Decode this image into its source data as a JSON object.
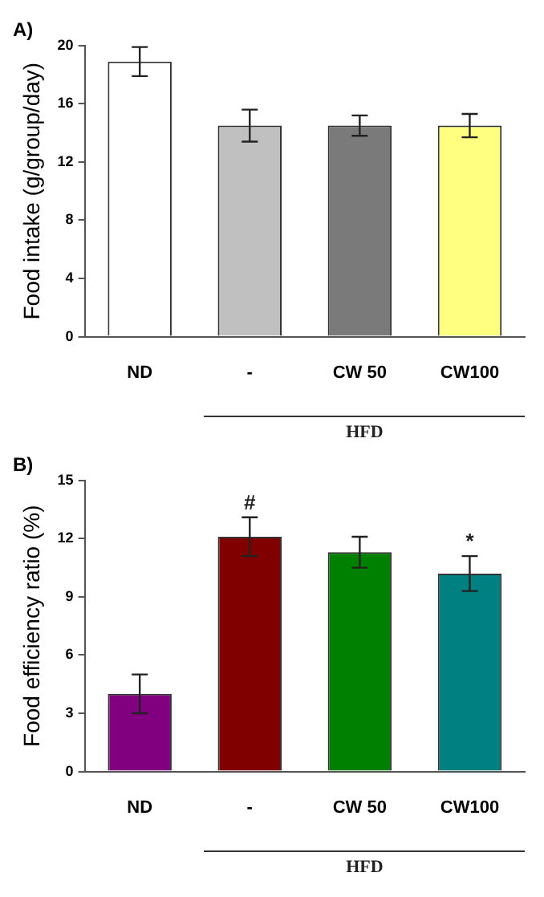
{
  "chart_data": [
    {
      "type": "bar",
      "title": "A)",
      "ylabel": "Food intake (g/group/day)",
      "xlabel": "HFD",
      "categories": [
        "ND",
        "-",
        "CW 50",
        "CW100"
      ],
      "values": [
        18.9,
        14.5,
        14.5,
        14.5
      ],
      "errors": [
        1.0,
        1.1,
        0.7,
        0.8
      ],
      "colors": [
        "#ffffff",
        "#c0c0c0",
        "#7a7a7a",
        "#ffff80"
      ],
      "ylim": [
        0,
        20
      ],
      "yticks": [
        0,
        4,
        8,
        12,
        16,
        20
      ],
      "grid": false,
      "legend": false
    },
    {
      "type": "bar",
      "title": "B)",
      "ylabel": "Food efficiency ratio (%)",
      "xlabel": "HFD",
      "categories": [
        "ND",
        "-",
        "CW 50",
        "CW100"
      ],
      "values": [
        4.0,
        12.1,
        11.3,
        10.2
      ],
      "errors": [
        1.0,
        1.0,
        0.8,
        0.9
      ],
      "colors": [
        "#800080",
        "#800000",
        "#008000",
        "#008080"
      ],
      "ylim": [
        0,
        15
      ],
      "yticks": [
        0,
        3,
        6,
        9,
        12,
        15
      ],
      "grid": false,
      "legend": false,
      "annotations": [
        {
          "text": "#",
          "x": "-",
          "y": 13.1
        },
        {
          "text": "*",
          "x": "CW100",
          "y": 11.1
        }
      ]
    }
  ]
}
